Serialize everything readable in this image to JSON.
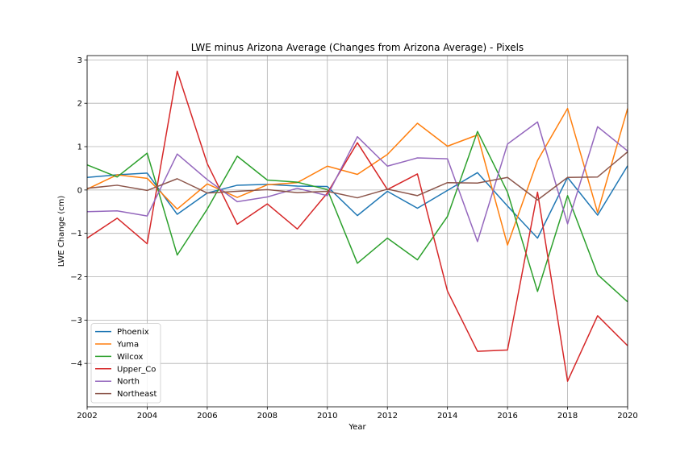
{
  "chart_data": {
    "type": "line",
    "title": "LWE minus Arizona Average (Changes from Arizona Average) - Pixels",
    "xlabel": "Year",
    "ylabel": "LWE Change (cm)",
    "xlim": [
      2002,
      2020
    ],
    "ylim": [
      -5.0,
      3.1
    ],
    "x_ticks": [
      2002,
      2004,
      2006,
      2008,
      2010,
      2012,
      2014,
      2016,
      2018,
      2020
    ],
    "y_ticks": [
      3,
      2,
      1,
      0,
      -1,
      -2,
      -3,
      -4
    ],
    "y_tick_labels": [
      "3",
      "2",
      "1",
      "0",
      "−1",
      "−2",
      "−3",
      "−4"
    ],
    "grid": true,
    "legend_position": "lower-left",
    "x": [
      2002,
      2003,
      2004,
      2005,
      2006,
      2007,
      2008,
      2009,
      2010,
      2011,
      2012,
      2013,
      2014,
      2015,
      2016,
      2017,
      2018,
      2019,
      2020
    ],
    "series": [
      {
        "name": "Phoenix",
        "color": "#1f77b4",
        "values": [
          0.29,
          0.35,
          0.39,
          -0.56,
          -0.07,
          0.11,
          0.13,
          0.09,
          0.08,
          -0.59,
          -0.03,
          -0.42,
          -0.01,
          0.4,
          -0.37,
          -1.11,
          0.29,
          -0.58,
          0.56
        ]
      },
      {
        "name": "Yuma",
        "color": "#ff7f0e",
        "values": [
          0.02,
          0.35,
          0.27,
          -0.44,
          0.14,
          -0.17,
          0.12,
          0.17,
          0.55,
          0.36,
          0.82,
          1.54,
          1.01,
          1.27,
          -1.27,
          0.68,
          1.88,
          -0.52,
          1.88
        ]
      },
      {
        "name": "Wilcox",
        "color": "#2ca02c",
        "values": [
          0.58,
          0.3,
          0.85,
          -1.5,
          -0.44,
          0.78,
          0.23,
          0.18,
          0.01,
          -1.69,
          -1.11,
          -1.61,
          -0.61,
          1.35,
          -0.05,
          -2.34,
          -0.13,
          -1.95,
          -2.58
        ]
      },
      {
        "name": "Upper_Co",
        "color": "#d62728",
        "values": [
          -1.11,
          -0.65,
          -1.24,
          2.74,
          0.61,
          -0.79,
          -0.32,
          -0.9,
          -0.07,
          1.09,
          0.01,
          0.37,
          -2.33,
          -3.72,
          -3.69,
          -0.05,
          -4.41,
          -2.9,
          -3.59
        ]
      },
      {
        "name": "North",
        "color": "#9467bd",
        "values": [
          -0.5,
          -0.48,
          -0.6,
          0.83,
          0.24,
          -0.27,
          -0.16,
          0.04,
          -0.13,
          1.23,
          0.55,
          0.74,
          0.72,
          -1.19,
          1.06,
          1.57,
          -0.78,
          1.46,
          0.9
        ]
      },
      {
        "name": "Northeast",
        "color": "#8c564b",
        "values": [
          0.04,
          0.11,
          -0.01,
          0.26,
          -0.07,
          -0.03,
          0.01,
          -0.06,
          -0.03,
          -0.18,
          0.02,
          -0.13,
          0.17,
          0.16,
          0.29,
          -0.23,
          0.29,
          0.3,
          0.88
        ]
      }
    ]
  }
}
